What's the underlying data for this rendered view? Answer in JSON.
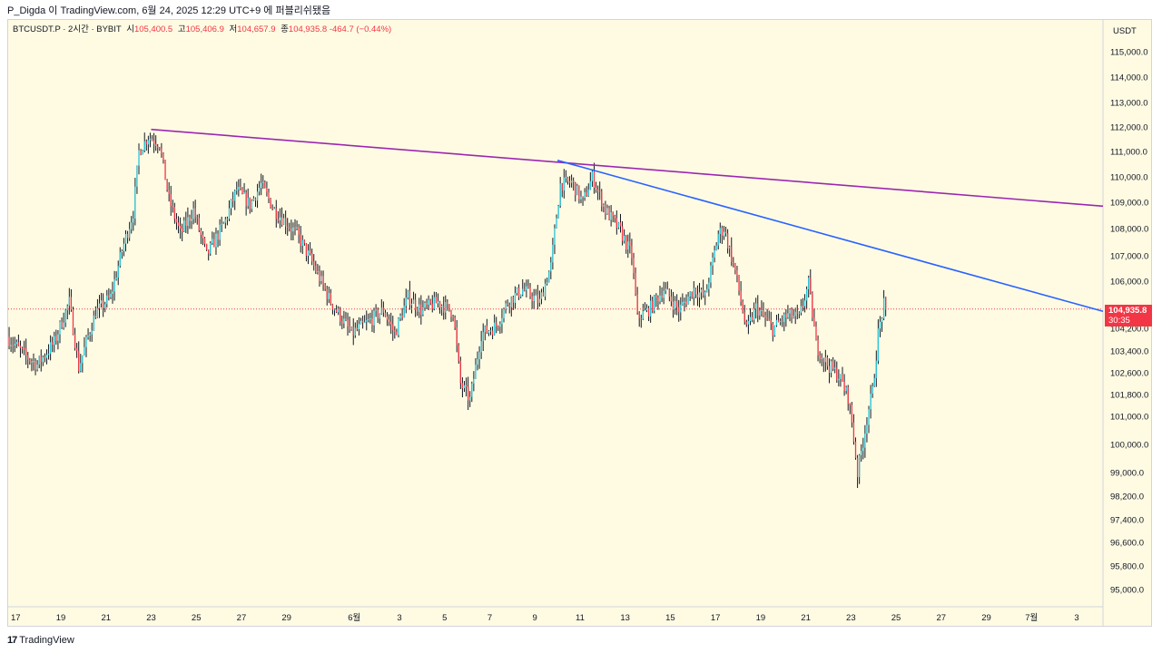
{
  "header": {
    "author": "P_Digda",
    "text": "이 TradingView.com, 6월 24, 2025 12:29 UTC+9 에 퍼블리쉬됐음"
  },
  "legend": {
    "symbol": "BTCUSDT.P · 2시간 · BYBIT",
    "open_label": "시",
    "open": "105,400.5",
    "high_label": "고",
    "high": "105,406.9",
    "low_label": "저",
    "low": "104,657.9",
    "close_label": "종",
    "close": "104,935.8",
    "change": "-464.7 (−0.44%)"
  },
  "price_axis": {
    "currency": "USDT",
    "last_price": "104,935.8",
    "countdown": "30:35"
  },
  "footer": {
    "brand": "TradingView",
    "mark": "17"
  },
  "colors": {
    "background": "#fffbe3",
    "up": "#26c6da",
    "down": "#f23645",
    "wick": "#131722",
    "trend_long": "#9c27b0",
    "trend_short": "#2962ff",
    "last_price_line": "#f23645"
  },
  "chart_data": {
    "type": "candlestick",
    "interval": "2시간",
    "y_ticks": [
      115000,
      114000,
      113000,
      112000,
      111000,
      110000,
      109000,
      108000,
      107000,
      106000,
      104200,
      103400,
      102600,
      101800,
      101000,
      100000,
      99000,
      98200,
      97400,
      96600,
      95800,
      95000
    ],
    "y_tick_labels": [
      "115,000.0",
      "114,000.0",
      "113,000.0",
      "112,000.0",
      "111,000.0",
      "110,000.0",
      "109,000.0",
      "108,000.0",
      "107,000.0",
      "106,000.0",
      "104,200.0",
      "103,400.0",
      "102,600.0",
      "101,800.0",
      "101,000.0",
      "100,000.0",
      "99,000.0",
      "98,200.0",
      "97,400.0",
      "96,600.0",
      "95,800.0",
      "95,000.0"
    ],
    "x_ticks": [
      "2025-05-17",
      "2025-05-19",
      "2025-05-21",
      "2025-05-23",
      "2025-05-25",
      "2025-05-27",
      "2025-05-29",
      "2025-06-01",
      "2025-06-03",
      "2025-06-05",
      "2025-06-07",
      "2025-06-09",
      "2025-06-11",
      "2025-06-13",
      "2025-06-15",
      "2025-06-17",
      "2025-06-19",
      "2025-06-21",
      "2025-06-23",
      "2025-06-25",
      "2025-06-27",
      "2025-06-29",
      "2025-07-01",
      "2025-07-03"
    ],
    "x_tick_labels": [
      "17",
      "19",
      "21",
      "23",
      "25",
      "27",
      "29",
      "6월",
      "3",
      "5",
      "7",
      "9",
      "11",
      "13",
      "15",
      "17",
      "19",
      "21",
      "23",
      "25",
      "27",
      "29",
      "7월",
      "3"
    ],
    "x_range": [
      "2025-05-16 16:00",
      "2025-07-04 04:00"
    ],
    "anchors": [
      [
        "2025-05-16 16:00",
        103900
      ],
      [
        "2025-05-17 12:00",
        103200
      ],
      [
        "2025-05-18 00:00",
        102900
      ],
      [
        "2025-05-18 18:00",
        103700
      ],
      [
        "2025-05-19 10:00",
        105200
      ],
      [
        "2025-05-19 20:00",
        102800
      ],
      [
        "2025-05-20 14:00",
        104800
      ],
      [
        "2025-05-21 06:00",
        105400
      ],
      [
        "2025-05-21 18:00",
        107200
      ],
      [
        "2025-05-22 06:00",
        108600
      ],
      [
        "2025-05-22 12:00",
        111000
      ],
      [
        "2025-05-22 22:00",
        111600
      ],
      [
        "2025-05-23 10:00",
        111300
      ],
      [
        "2025-05-23 20:00",
        109100
      ],
      [
        "2025-05-24 08:00",
        107800
      ],
      [
        "2025-05-24 22:00",
        108700
      ],
      [
        "2025-05-25 12:00",
        107000
      ],
      [
        "2025-05-26 08:00",
        108300
      ],
      [
        "2025-05-26 20:00",
        109500
      ],
      [
        "2025-05-27 10:00",
        108900
      ],
      [
        "2025-05-27 22:00",
        109700
      ],
      [
        "2025-05-28 12:00",
        108700
      ],
      [
        "2025-05-29 12:00",
        107800
      ],
      [
        "2025-05-30 02:00",
        106900
      ],
      [
        "2025-05-31 00:00",
        105200
      ],
      [
        "2025-05-31 22:00",
        104000
      ],
      [
        "2025-06-01 14:00",
        104400
      ],
      [
        "2025-06-02 08:00",
        104900
      ],
      [
        "2025-06-02 20:00",
        104000
      ],
      [
        "2025-06-03 10:00",
        105400
      ],
      [
        "2025-06-04 00:00",
        104900
      ],
      [
        "2025-06-04 18:00",
        105200
      ],
      [
        "2025-06-05 10:00",
        104800
      ],
      [
        "2025-06-05 18:00",
        102200
      ],
      [
        "2025-06-06 04:00",
        101600
      ],
      [
        "2025-06-06 16:00",
        104000
      ],
      [
        "2025-06-07 08:00",
        104300
      ],
      [
        "2025-06-07 20:00",
        105200
      ],
      [
        "2025-06-08 12:00",
        105700
      ],
      [
        "2025-06-09 06:00",
        105200
      ],
      [
        "2025-06-09 18:00",
        106600
      ],
      [
        "2025-06-10 04:00",
        109700
      ],
      [
        "2025-06-10 16:00",
        109800
      ],
      [
        "2025-06-11 04:00",
        109000
      ],
      [
        "2025-06-11 14:00",
        110000
      ],
      [
        "2025-06-12 04:00",
        108700
      ],
      [
        "2025-06-12 20:00",
        107900
      ],
      [
        "2025-06-13 08:00",
        107000
      ],
      [
        "2025-06-13 14:00",
        104600
      ],
      [
        "2025-06-14 02:00",
        104900
      ],
      [
        "2025-06-14 18:00",
        105700
      ],
      [
        "2025-06-15 10:00",
        104900
      ],
      [
        "2025-06-16 02:00",
        105700
      ],
      [
        "2025-06-16 14:00",
        105400
      ],
      [
        "2025-06-17 04:00",
        107800
      ],
      [
        "2025-06-17 10:00",
        108000
      ],
      [
        "2025-06-17 22:00",
        106400
      ],
      [
        "2025-06-18 10:00",
        104100
      ],
      [
        "2025-06-18 20:00",
        105000
      ],
      [
        "2025-06-19 14:00",
        104200
      ],
      [
        "2025-06-20 06:00",
        104700
      ],
      [
        "2025-06-20 18:00",
        104600
      ],
      [
        "2025-06-21 04:00",
        105900
      ],
      [
        "2025-06-21 12:00",
        103600
      ],
      [
        "2025-06-22 00:00",
        102900
      ],
      [
        "2025-06-22 12:00",
        102500
      ],
      [
        "2025-06-22 22:00",
        101700
      ],
      [
        "2025-06-23 02:00",
        100800
      ],
      [
        "2025-06-23 08:00",
        99000
      ],
      [
        "2025-06-23 14:00",
        100100
      ],
      [
        "2025-06-23 20:00",
        101300
      ],
      [
        "2025-06-24 00:00",
        101900
      ],
      [
        "2025-06-24 06:00",
        104000
      ],
      [
        "2025-06-24 12:00",
        105100
      ]
    ],
    "last_candle": {
      "open": 105400.5,
      "high": 105406.9,
      "low": 104657.9,
      "close": 104935.8
    },
    "last_price": 104935.8,
    "trendlines": [
      {
        "color": "#9c27b0",
        "start": [
          "2025-05-23 00:00",
          111900
        ],
        "end": [
          "2025-07-04 04:00",
          108850
        ]
      },
      {
        "color": "#2962ff",
        "start": [
          "2025-06-10 00:00",
          110650
        ],
        "end": [
          "2025-07-04 04:00",
          104850
        ]
      }
    ]
  }
}
